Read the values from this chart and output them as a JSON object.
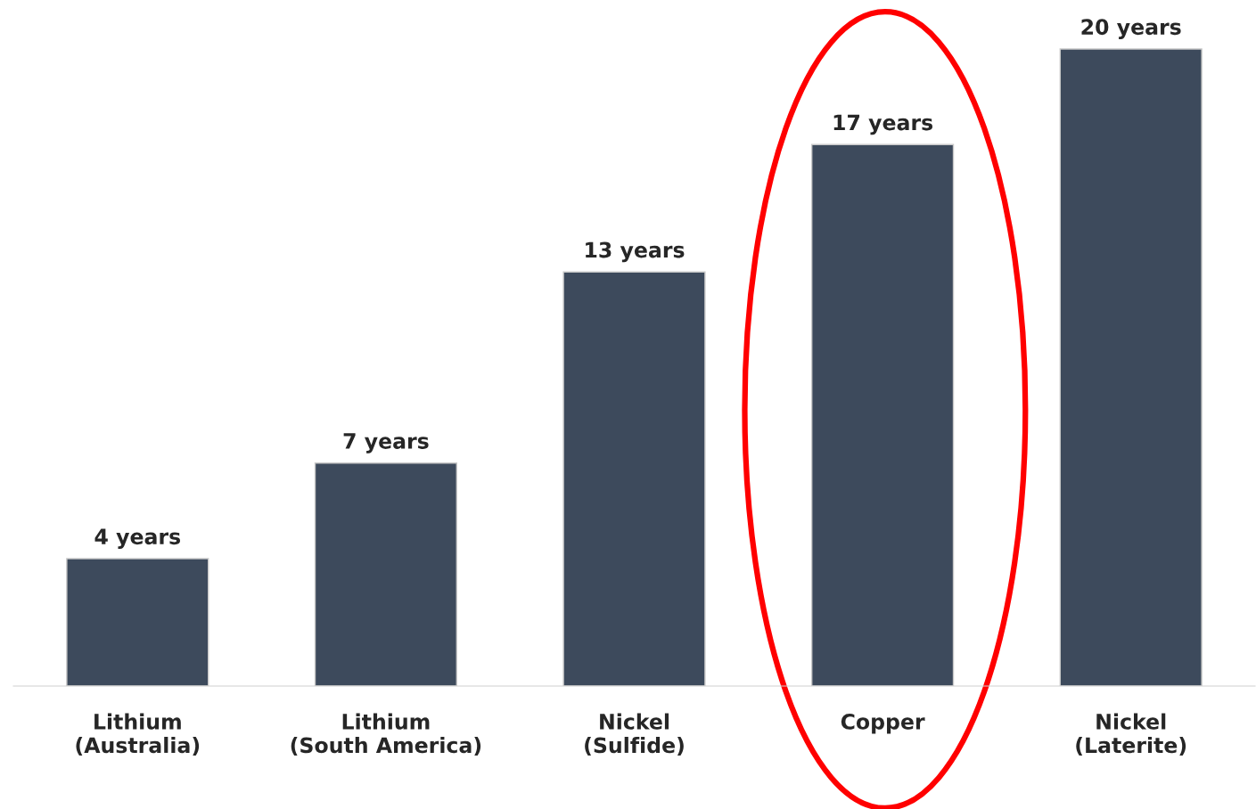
{
  "chart_data": {
    "type": "bar",
    "categories": [
      "Lithium\n(Australia)",
      "Lithium\n(South America)",
      "Nickel\n(Sulfide)",
      "Copper",
      "Nickel\n(Laterite)"
    ],
    "values": [
      4,
      7,
      13,
      17,
      20
    ],
    "value_labels": [
      "4 years",
      "7 years",
      "13 years",
      "17 years",
      "20 years"
    ],
    "color": "#3d4a5c",
    "grid": false,
    "legend": false
  }
}
